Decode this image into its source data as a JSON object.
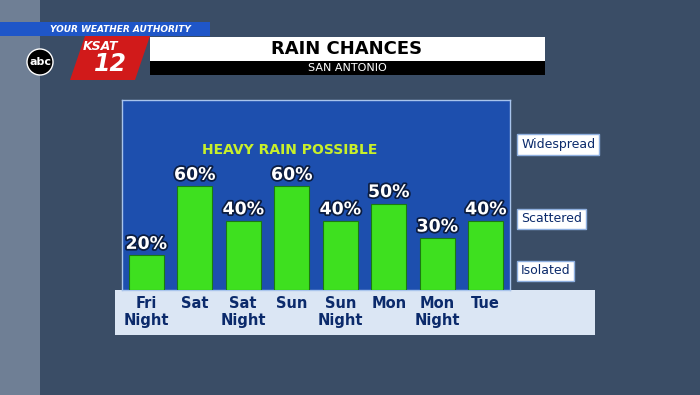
{
  "chart_data": {
    "type": "bar",
    "title": "RAIN CHANCES",
    "subtitle": "SAN ANTONIO",
    "annotations": [
      "HEAVY RAIN POSSIBLE",
      "YOUR WEATHER AUTHORITY",
      "abc",
      "KSAT",
      "12"
    ],
    "categories": [
      "Fri Night",
      "Sat",
      "Sat Night",
      "Sun",
      "Sun Night",
      "Mon",
      "Mon Night",
      "Tue"
    ],
    "values": [
      20,
      60,
      40,
      60,
      40,
      50,
      30,
      40
    ],
    "value_labels": [
      "20%",
      "60%",
      "40%",
      "60%",
      "40%",
      "50%",
      "30%",
      "40%"
    ],
    "data_labels": true,
    "color": "#3ee01f",
    "ylim": [
      0,
      110
    ],
    "yticks": [
      {
        "value": 12,
        "label": "Isolated"
      },
      {
        "value": 42,
        "label": "Scattered"
      },
      {
        "value": 85,
        "label": "Widespread"
      }
    ],
    "grid": false
  }
}
